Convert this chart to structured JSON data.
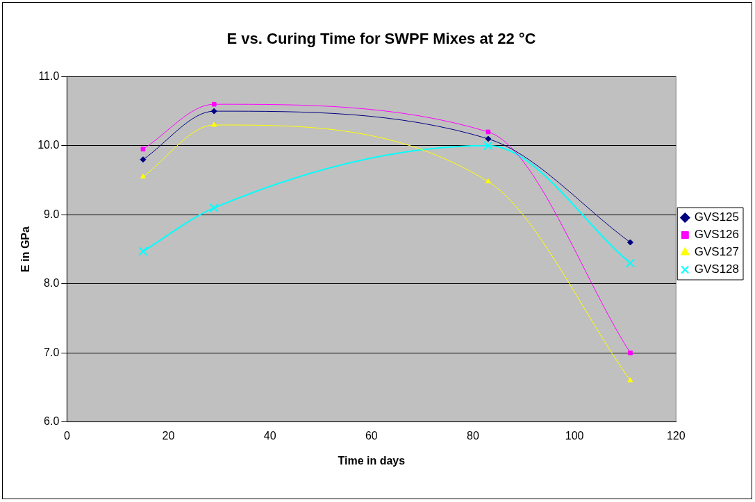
{
  "chart_data": {
    "type": "line",
    "title": "E vs. Curing Time for SWPF Mixes at 22 °C",
    "xlabel": "Time in days",
    "ylabel": "E in GPa",
    "x": [
      15,
      29,
      83,
      111
    ],
    "series": [
      {
        "name": "GVS125",
        "color": "#000080",
        "marker": "diamond",
        "values": [
          9.8,
          10.5,
          10.1,
          8.6
        ]
      },
      {
        "name": "GVS126",
        "color": "#ff00ff",
        "marker": "square",
        "values": [
          9.95,
          10.6,
          10.2,
          7.0
        ]
      },
      {
        "name": "GVS127",
        "color": "#ffff00",
        "marker": "triangle",
        "values": [
          9.55,
          10.3,
          9.48,
          6.6
        ]
      },
      {
        "name": "GVS128",
        "color": "#00ffff",
        "marker": "cross",
        "values": [
          8.47,
          9.1,
          10.0,
          8.3
        ]
      }
    ],
    "xlim": [
      0,
      120
    ],
    "xticks": [
      0,
      20,
      40,
      60,
      80,
      100,
      120
    ],
    "ylim": [
      6,
      11
    ],
    "yticks": [
      {
        "value": 6,
        "label": "6.0"
      },
      {
        "value": 7,
        "label": "7.0"
      },
      {
        "value": 8,
        "label": "8.0"
      },
      {
        "value": 9,
        "label": "9.0"
      },
      {
        "value": 10,
        "label": "10.0"
      },
      {
        "value": 11,
        "label": "11.0"
      }
    ],
    "grid": "y",
    "legend": "right",
    "line_style": "solid"
  }
}
